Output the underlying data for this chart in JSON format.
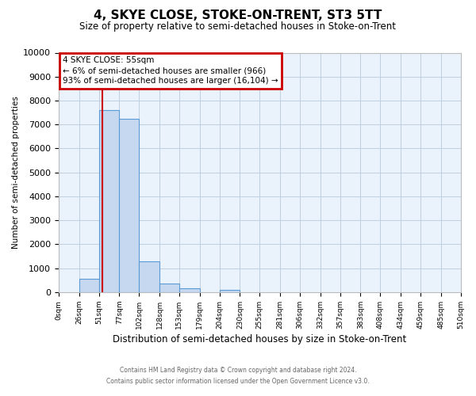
{
  "title": "4, SKYE CLOSE, STOKE-ON-TRENT, ST3 5TT",
  "subtitle": "Size of property relative to semi-detached houses in Stoke-on-Trent",
  "xlabel": "Distribution of semi-detached houses by size in Stoke-on-Trent",
  "ylabel": "Number of semi-detached properties",
  "bin_edges": [
    0,
    26,
    51,
    77,
    102,
    128,
    153,
    179,
    204,
    230,
    255,
    281,
    306,
    332,
    357,
    383,
    408,
    434,
    459,
    485,
    510
  ],
  "bin_labels": [
    "0sqm",
    "26sqm",
    "51sqm",
    "77sqm",
    "102sqm",
    "128sqm",
    "153sqm",
    "179sqm",
    "204sqm",
    "230sqm",
    "255sqm",
    "281sqm",
    "306sqm",
    "332sqm",
    "357sqm",
    "383sqm",
    "408sqm",
    "434sqm",
    "459sqm",
    "485sqm",
    "510sqm"
  ],
  "bar_heights": [
    0,
    550,
    7600,
    7250,
    1300,
    350,
    150,
    0,
    100,
    0,
    0,
    0,
    0,
    0,
    0,
    0,
    0,
    0,
    0,
    0
  ],
  "bar_color": "#c5d8f0",
  "bar_edge_color": "#5b9bd5",
  "property_line_x": 55,
  "property_line_color": "#cc0000",
  "ylim": [
    0,
    10000
  ],
  "yticks": [
    0,
    1000,
    2000,
    3000,
    4000,
    5000,
    6000,
    7000,
    8000,
    9000,
    10000
  ],
  "annotation_box_title": "4 SKYE CLOSE: 55sqm",
  "annotation_line1": "← 6% of semi-detached houses are smaller (966)",
  "annotation_line2": "93% of semi-detached houses are larger (16,104) →",
  "annotation_box_edgecolor": "#cc0000",
  "grid_color": "#c0cfe0",
  "plot_bg_color": "#eaf2fb",
  "footer_line1": "Contains HM Land Registry data © Crown copyright and database right 2024.",
  "footer_line2": "Contains public sector information licensed under the Open Government Licence v3.0."
}
